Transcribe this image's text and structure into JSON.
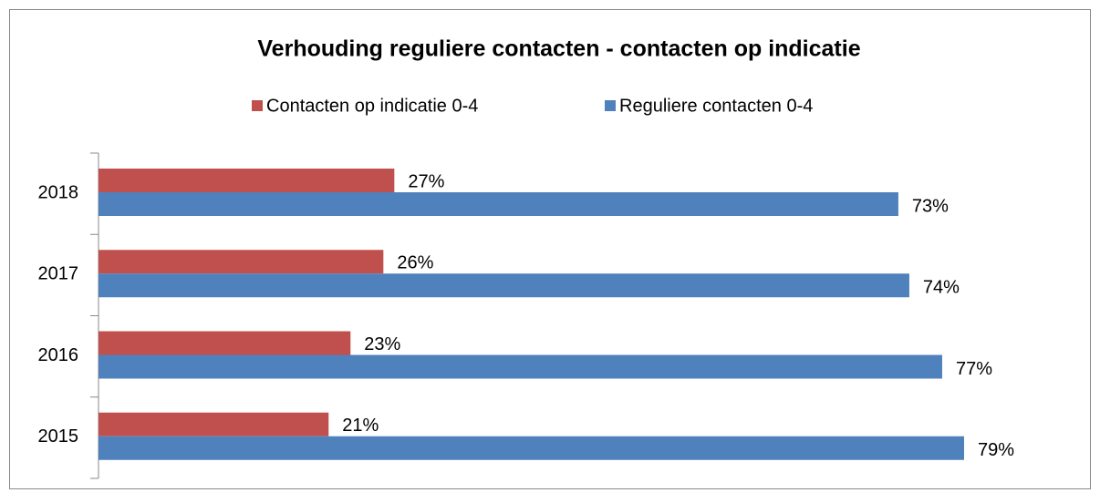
{
  "chart_data": {
    "type": "bar",
    "orientation": "horizontal",
    "title": "Verhouding reguliere contacten - contacten op indicatie",
    "categories": [
      "2015",
      "2016",
      "2017",
      "2018"
    ],
    "series": [
      {
        "name": "Contacten op indicatie 0-4",
        "color": "#c0504d",
        "values": [
          21,
          23,
          26,
          27
        ],
        "value_labels": [
          "21%",
          "23%",
          "26%",
          "27%"
        ]
      },
      {
        "name": "Reguliere contacten 0-4",
        "color": "#4f81bd",
        "values": [
          79,
          77,
          74,
          73
        ],
        "value_labels": [
          "79%",
          "77%",
          "74%",
          "73%"
        ]
      }
    ],
    "legend": "top"
  }
}
